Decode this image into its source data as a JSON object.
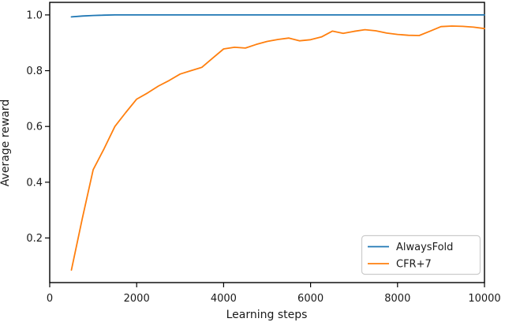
{
  "figure": {
    "background": "#ffffff",
    "spine_color": "#000000",
    "text_color": "#1a1a1a",
    "legend_border_color": "#cccccc"
  },
  "chart_data": {
    "type": "line",
    "title": "",
    "xlabel": "Learning steps",
    "ylabel": "Average reward",
    "xlim": [
      0,
      10000
    ],
    "ylim": [
      0.04,
      1.045
    ],
    "x_ticks": [
      0,
      2000,
      4000,
      6000,
      8000,
      10000
    ],
    "x_tick_labels": [
      "0",
      "2000",
      "4000",
      "6000",
      "8000",
      "10000"
    ],
    "y_ticks": [
      0.2,
      0.4,
      0.6,
      0.8,
      1.0
    ],
    "y_tick_labels": [
      "0.2",
      "0.4",
      "0.6",
      "0.8",
      "1.0"
    ],
    "grid": false,
    "legend_position": "lower right",
    "x": [
      500,
      750,
      1000,
      1250,
      1500,
      1750,
      2000,
      2250,
      2500,
      2750,
      3000,
      3250,
      3500,
      3750,
      4000,
      4250,
      4500,
      4750,
      5000,
      5250,
      5500,
      5750,
      6000,
      6250,
      6500,
      6750,
      7000,
      7250,
      7500,
      7750,
      8000,
      8250,
      8500,
      8750,
      9000,
      9250,
      9500,
      9750,
      10000
    ],
    "series": [
      {
        "name": "AlwaysFold",
        "color": "#1f77b4",
        "values": [
          0.993,
          0.996,
          0.998,
          0.999,
          1.0,
          1.0,
          1.0,
          1.0,
          1.0,
          1.0,
          1.0,
          1.0,
          1.0,
          1.0,
          1.0,
          1.0,
          1.0,
          1.0,
          1.0,
          1.0,
          1.0,
          1.0,
          1.0,
          1.0,
          1.0,
          1.0,
          1.0,
          1.0,
          1.0,
          1.0,
          1.0,
          1.0,
          1.0,
          1.0,
          1.0,
          1.0,
          1.0,
          1.0,
          1.0
        ]
      },
      {
        "name": "CFR+7",
        "color": "#ff7f0e",
        "values": [
          0.085,
          0.27,
          0.445,
          0.52,
          0.6,
          0.65,
          0.698,
          0.72,
          0.745,
          0.765,
          0.788,
          0.8,
          0.812,
          0.845,
          0.878,
          0.884,
          0.881,
          0.894,
          0.905,
          0.912,
          0.917,
          0.907,
          0.911,
          0.921,
          0.942,
          0.934,
          0.941,
          0.947,
          0.943,
          0.935,
          0.93,
          0.927,
          0.926,
          0.942,
          0.958,
          0.96,
          0.959,
          0.956,
          0.951
        ]
      }
    ]
  }
}
